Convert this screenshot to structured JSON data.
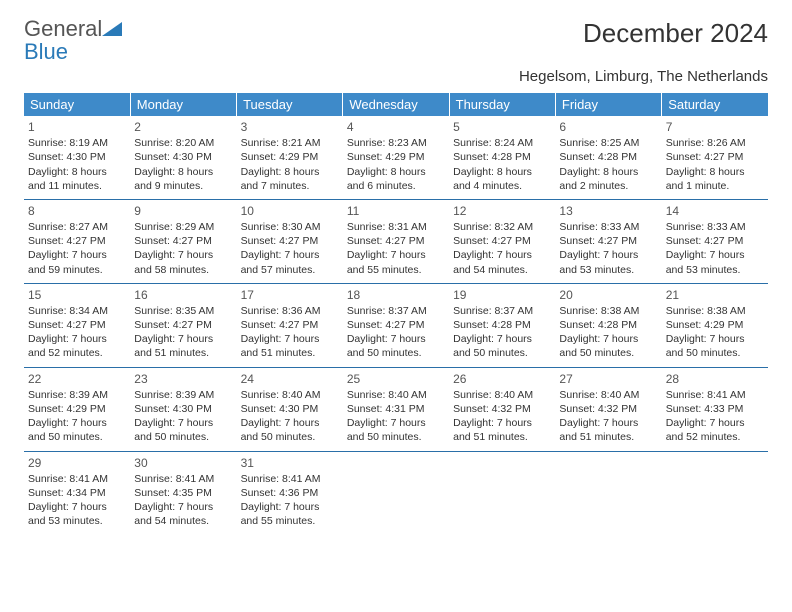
{
  "header": {
    "logo_text_1": "General",
    "logo_text_2": "Blue",
    "title": "December 2024",
    "subtitle": "Hegelsom, Limburg, The Netherlands"
  },
  "colors": {
    "header_bg": "#3e8ac9",
    "header_fg": "#ffffff",
    "rule": "#2a6fa8",
    "logo_blue": "#2a7ab8",
    "text": "#333333"
  },
  "day_headers": [
    "Sunday",
    "Monday",
    "Tuesday",
    "Wednesday",
    "Thursday",
    "Friday",
    "Saturday"
  ],
  "weeks": [
    [
      {
        "n": "1",
        "sr": "Sunrise: 8:19 AM",
        "ss": "Sunset: 4:30 PM",
        "dl": "Daylight: 8 hours and 11 minutes."
      },
      {
        "n": "2",
        "sr": "Sunrise: 8:20 AM",
        "ss": "Sunset: 4:30 PM",
        "dl": "Daylight: 8 hours and 9 minutes."
      },
      {
        "n": "3",
        "sr": "Sunrise: 8:21 AM",
        "ss": "Sunset: 4:29 PM",
        "dl": "Daylight: 8 hours and 7 minutes."
      },
      {
        "n": "4",
        "sr": "Sunrise: 8:23 AM",
        "ss": "Sunset: 4:29 PM",
        "dl": "Daylight: 8 hours and 6 minutes."
      },
      {
        "n": "5",
        "sr": "Sunrise: 8:24 AM",
        "ss": "Sunset: 4:28 PM",
        "dl": "Daylight: 8 hours and 4 minutes."
      },
      {
        "n": "6",
        "sr": "Sunrise: 8:25 AM",
        "ss": "Sunset: 4:28 PM",
        "dl": "Daylight: 8 hours and 2 minutes."
      },
      {
        "n": "7",
        "sr": "Sunrise: 8:26 AM",
        "ss": "Sunset: 4:27 PM",
        "dl": "Daylight: 8 hours and 1 minute."
      }
    ],
    [
      {
        "n": "8",
        "sr": "Sunrise: 8:27 AM",
        "ss": "Sunset: 4:27 PM",
        "dl": "Daylight: 7 hours and 59 minutes."
      },
      {
        "n": "9",
        "sr": "Sunrise: 8:29 AM",
        "ss": "Sunset: 4:27 PM",
        "dl": "Daylight: 7 hours and 58 minutes."
      },
      {
        "n": "10",
        "sr": "Sunrise: 8:30 AM",
        "ss": "Sunset: 4:27 PM",
        "dl": "Daylight: 7 hours and 57 minutes."
      },
      {
        "n": "11",
        "sr": "Sunrise: 8:31 AM",
        "ss": "Sunset: 4:27 PM",
        "dl": "Daylight: 7 hours and 55 minutes."
      },
      {
        "n": "12",
        "sr": "Sunrise: 8:32 AM",
        "ss": "Sunset: 4:27 PM",
        "dl": "Daylight: 7 hours and 54 minutes."
      },
      {
        "n": "13",
        "sr": "Sunrise: 8:33 AM",
        "ss": "Sunset: 4:27 PM",
        "dl": "Daylight: 7 hours and 53 minutes."
      },
      {
        "n": "14",
        "sr": "Sunrise: 8:33 AM",
        "ss": "Sunset: 4:27 PM",
        "dl": "Daylight: 7 hours and 53 minutes."
      }
    ],
    [
      {
        "n": "15",
        "sr": "Sunrise: 8:34 AM",
        "ss": "Sunset: 4:27 PM",
        "dl": "Daylight: 7 hours and 52 minutes."
      },
      {
        "n": "16",
        "sr": "Sunrise: 8:35 AM",
        "ss": "Sunset: 4:27 PM",
        "dl": "Daylight: 7 hours and 51 minutes."
      },
      {
        "n": "17",
        "sr": "Sunrise: 8:36 AM",
        "ss": "Sunset: 4:27 PM",
        "dl": "Daylight: 7 hours and 51 minutes."
      },
      {
        "n": "18",
        "sr": "Sunrise: 8:37 AM",
        "ss": "Sunset: 4:27 PM",
        "dl": "Daylight: 7 hours and 50 minutes."
      },
      {
        "n": "19",
        "sr": "Sunrise: 8:37 AM",
        "ss": "Sunset: 4:28 PM",
        "dl": "Daylight: 7 hours and 50 minutes."
      },
      {
        "n": "20",
        "sr": "Sunrise: 8:38 AM",
        "ss": "Sunset: 4:28 PM",
        "dl": "Daylight: 7 hours and 50 minutes."
      },
      {
        "n": "21",
        "sr": "Sunrise: 8:38 AM",
        "ss": "Sunset: 4:29 PM",
        "dl": "Daylight: 7 hours and 50 minutes."
      }
    ],
    [
      {
        "n": "22",
        "sr": "Sunrise: 8:39 AM",
        "ss": "Sunset: 4:29 PM",
        "dl": "Daylight: 7 hours and 50 minutes."
      },
      {
        "n": "23",
        "sr": "Sunrise: 8:39 AM",
        "ss": "Sunset: 4:30 PM",
        "dl": "Daylight: 7 hours and 50 minutes."
      },
      {
        "n": "24",
        "sr": "Sunrise: 8:40 AM",
        "ss": "Sunset: 4:30 PM",
        "dl": "Daylight: 7 hours and 50 minutes."
      },
      {
        "n": "25",
        "sr": "Sunrise: 8:40 AM",
        "ss": "Sunset: 4:31 PM",
        "dl": "Daylight: 7 hours and 50 minutes."
      },
      {
        "n": "26",
        "sr": "Sunrise: 8:40 AM",
        "ss": "Sunset: 4:32 PM",
        "dl": "Daylight: 7 hours and 51 minutes."
      },
      {
        "n": "27",
        "sr": "Sunrise: 8:40 AM",
        "ss": "Sunset: 4:32 PM",
        "dl": "Daylight: 7 hours and 51 minutes."
      },
      {
        "n": "28",
        "sr": "Sunrise: 8:41 AM",
        "ss": "Sunset: 4:33 PM",
        "dl": "Daylight: 7 hours and 52 minutes."
      }
    ],
    [
      {
        "n": "29",
        "sr": "Sunrise: 8:41 AM",
        "ss": "Sunset: 4:34 PM",
        "dl": "Daylight: 7 hours and 53 minutes."
      },
      {
        "n": "30",
        "sr": "Sunrise: 8:41 AM",
        "ss": "Sunset: 4:35 PM",
        "dl": "Daylight: 7 hours and 54 minutes."
      },
      {
        "n": "31",
        "sr": "Sunrise: 8:41 AM",
        "ss": "Sunset: 4:36 PM",
        "dl": "Daylight: 7 hours and 55 minutes."
      },
      null,
      null,
      null,
      null
    ]
  ]
}
